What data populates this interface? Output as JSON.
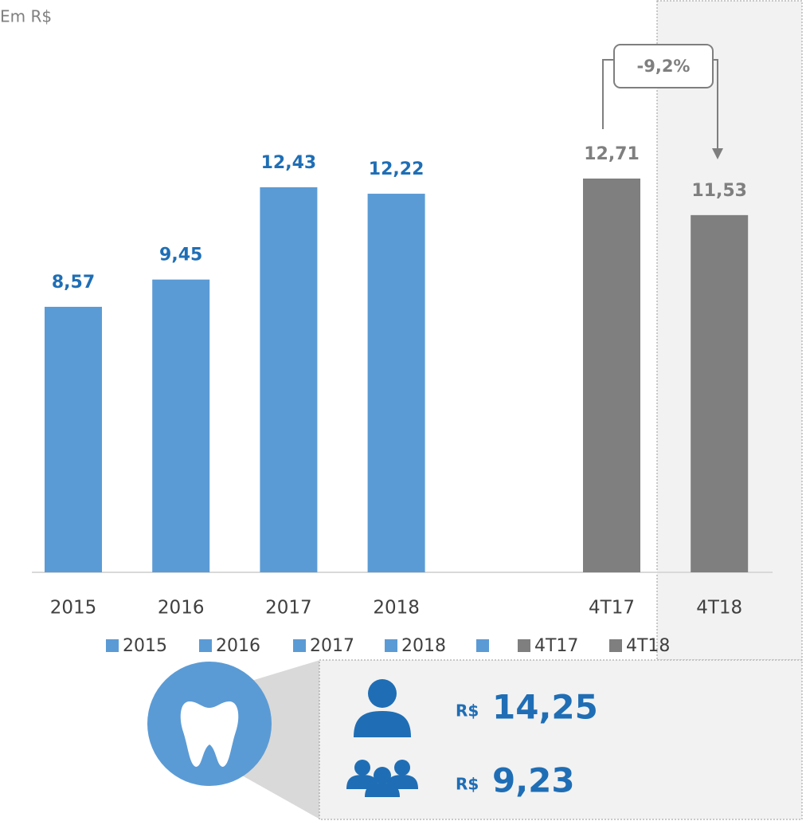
{
  "chart_data": {
    "type": "bar",
    "subtitle": "Em R$",
    "categories": [
      "2015",
      "2016",
      "2017",
      "2018",
      null,
      "4T17",
      "4T18"
    ],
    "values": [
      8.57,
      9.45,
      12.43,
      12.22,
      null,
      12.71,
      11.53
    ],
    "value_labels": [
      "8,57",
      "9,45",
      "12,43",
      "12,22",
      null,
      "12,71",
      "11,53"
    ],
    "colors": [
      "#5b9bd5",
      "#5b9bd5",
      "#5b9bd5",
      "#5b9bd5",
      "#5b9bd5",
      "#7f7f7f",
      "#7f7f7f"
    ],
    "label_colors": [
      "#1f6eb5",
      "#1f6eb5",
      "#1f6eb5",
      "#1f6eb5",
      "#1f6eb5",
      "#7f7f7f",
      "#7f7f7f"
    ],
    "annotation": "-9,2%",
    "callout": [
      {
        "currency": "R$",
        "amount": "14,25"
      },
      {
        "currency": "R$",
        "amount": "9,23"
      }
    ]
  }
}
